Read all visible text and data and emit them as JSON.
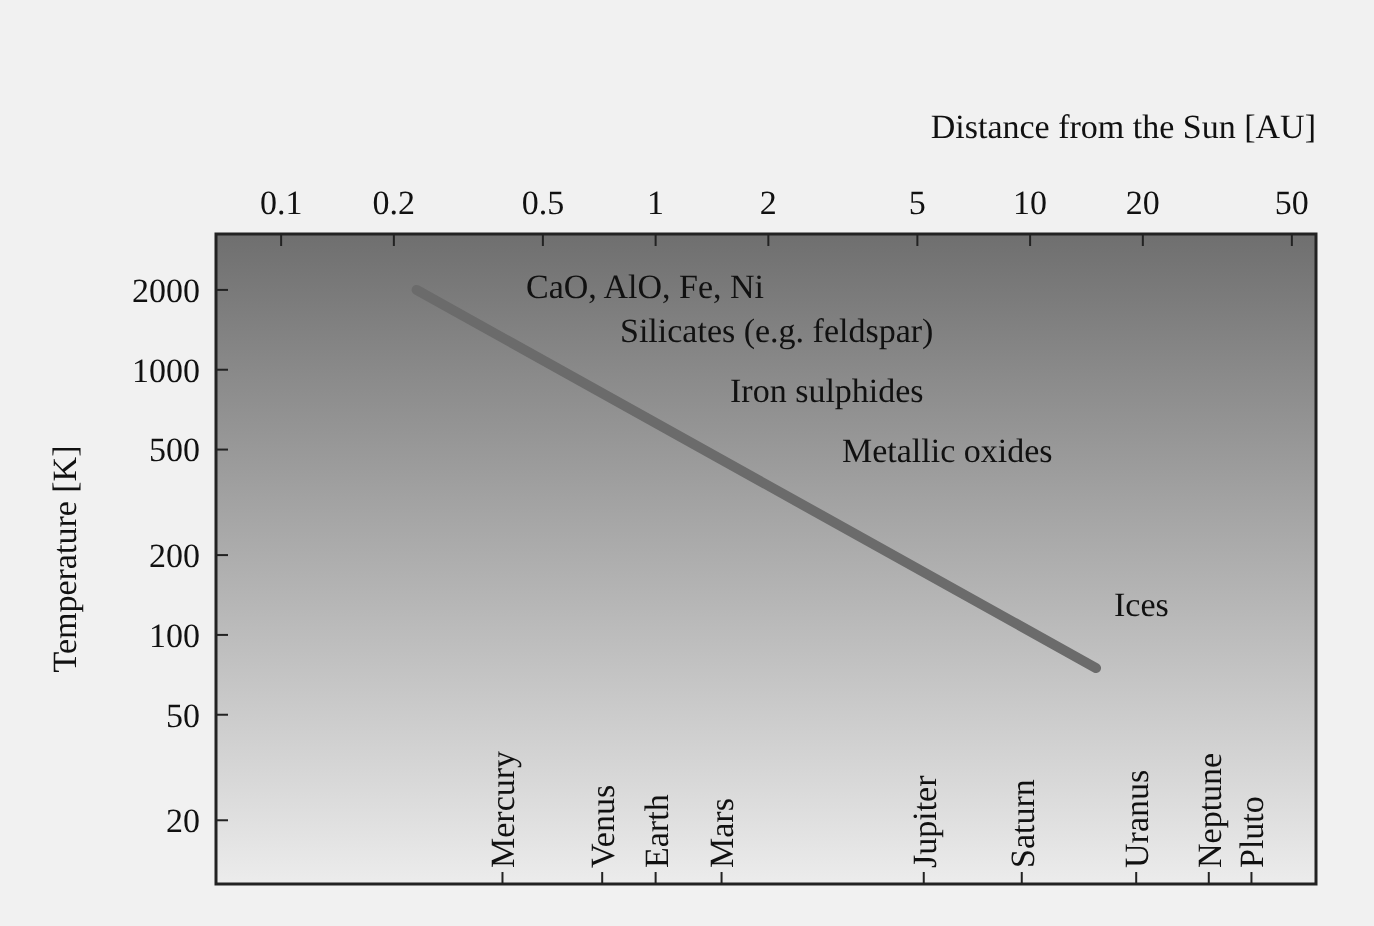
{
  "chart_data": {
    "type": "line",
    "xlabel": "Distance from the Sun [AU]",
    "ylabel": "Temperature [K]",
    "log": "xy",
    "grid": false,
    "xlim": [
      0.067,
      58
    ],
    "ylim": [
      11.5,
      3250
    ],
    "xticks": [
      0.1,
      0.2,
      0.5,
      1,
      2,
      5,
      10,
      20,
      50
    ],
    "yticks": [
      20,
      50,
      100,
      200,
      500,
      1000,
      2000
    ],
    "series": [
      {
        "color": "#6b6b6b",
        "x": [
          0.23,
          15
        ],
        "values": [
          2000,
          75
        ]
      }
    ],
    "annotations": [
      "CaO, AlO, Fe, Ni",
      "Silicates (e.g. feldspar)",
      "Iron sulphides",
      "Metallic oxides",
      "Ices"
    ],
    "ref_lines": [
      {
        "axis": "x",
        "value": 0.39,
        "label": "Mercury"
      },
      {
        "axis": "x",
        "value": 0.72,
        "label": "Venus"
      },
      {
        "axis": "x",
        "value": 1,
        "label": "Earth"
      },
      {
        "axis": "x",
        "value": 1.5,
        "label": "Mars"
      },
      {
        "axis": "x",
        "value": 5.2,
        "label": "Jupiter"
      },
      {
        "axis": "x",
        "value": 9.5,
        "label": "Saturn"
      },
      {
        "axis": "x",
        "value": 19.2,
        "label": "Uranus"
      },
      {
        "axis": "x",
        "value": 30,
        "label": "Neptune"
      },
      {
        "axis": "x",
        "value": 39,
        "label": "Pluto"
      }
    ]
  }
}
